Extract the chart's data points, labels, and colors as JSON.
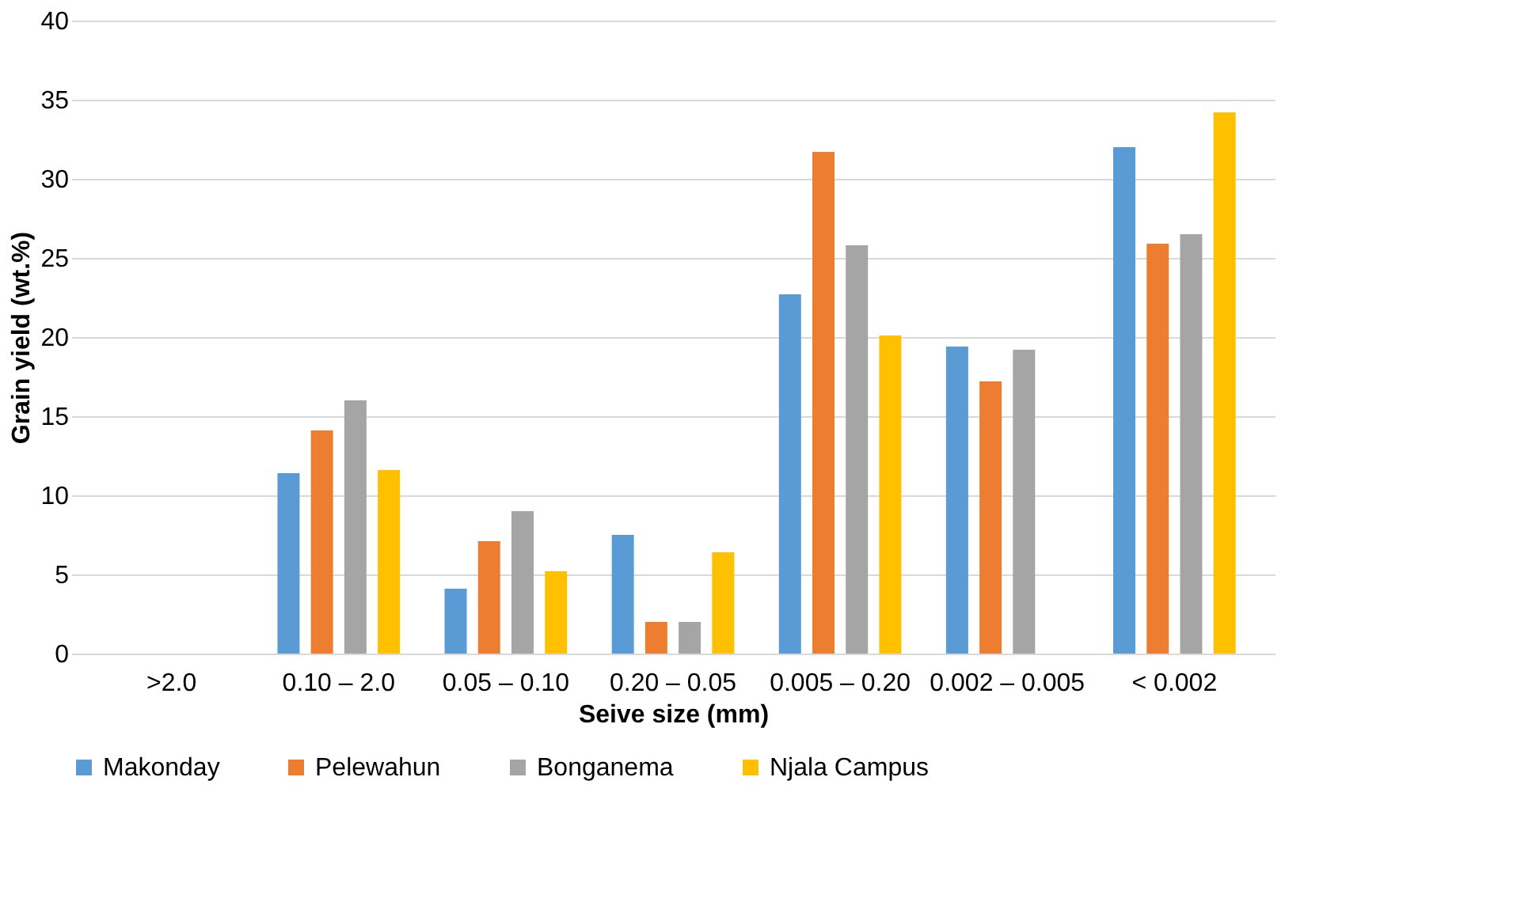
{
  "chart_data": {
    "type": "bar",
    "xlabel": "Seive size (mm)",
    "ylabel": "Grain yield (wt.%)",
    "categories": [
      ">2.0",
      "0.10 – 2.0",
      "0.05 – 0.10",
      "0.20 – 0.05",
      "0.005 – 0.20",
      "0.002 – 0.005",
      "< 0.002"
    ],
    "series": [
      {
        "name": "Makonday",
        "color": "#5b9bd5",
        "values": [
          0,
          11.4,
          4.1,
          7.5,
          22.7,
          19.4,
          32.0
        ]
      },
      {
        "name": "Pelewahun",
        "color": "#ed7d31",
        "values": [
          0,
          14.1,
          7.1,
          2.0,
          31.7,
          17.2,
          25.9
        ]
      },
      {
        "name": "Bonganema",
        "color": "#a5a5a5",
        "values": [
          0,
          16.0,
          9.0,
          2.0,
          25.8,
          19.2,
          26.5
        ]
      },
      {
        "name": "Njala Campus",
        "color": "#ffc000",
        "values": [
          0,
          11.6,
          5.2,
          6.4,
          20.1,
          0,
          34.2
        ]
      }
    ],
    "ylim": [
      0,
      40
    ],
    "yticks": [
      0,
      5,
      10,
      15,
      20,
      25,
      30,
      35,
      40
    ],
    "grid": "y",
    "legend": "bottom"
  }
}
